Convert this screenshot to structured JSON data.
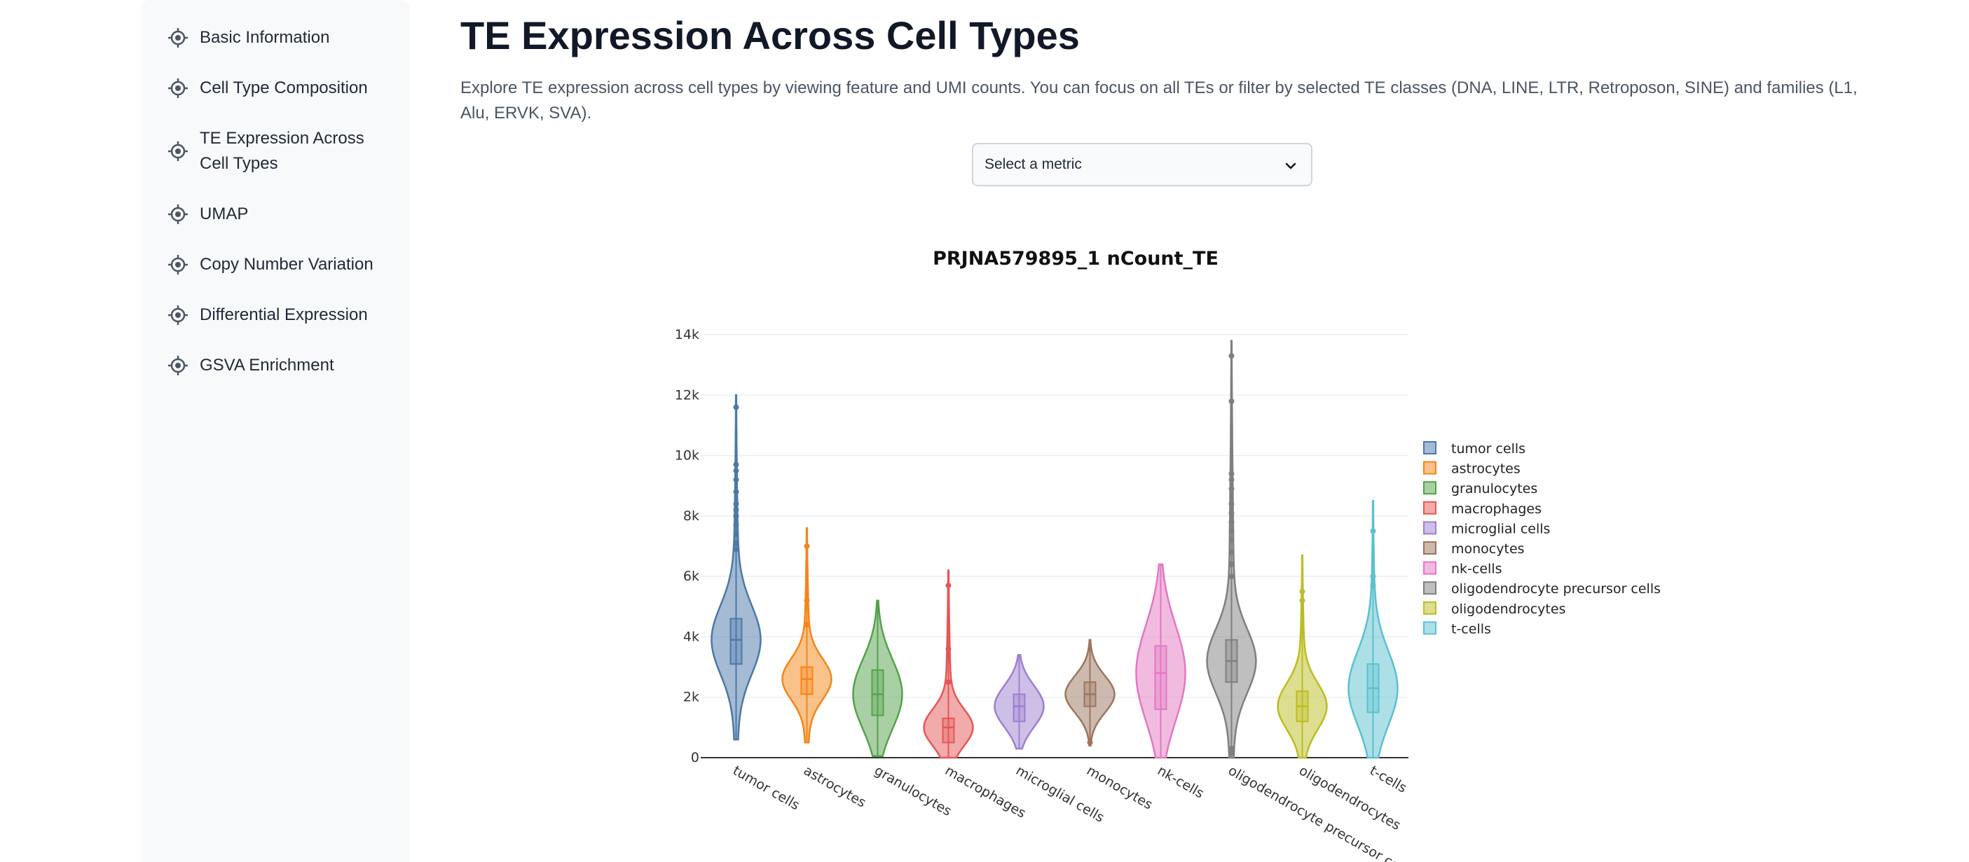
{
  "sidebar": {
    "items": [
      {
        "label": "Basic Information",
        "icon": "target-icon"
      },
      {
        "label": "Cell Type Composition",
        "icon": "target-icon"
      },
      {
        "label": "TE Expression Across Cell Types",
        "icon": "target-icon"
      },
      {
        "label": "UMAP",
        "icon": "target-icon"
      },
      {
        "label": "Copy Number Variation",
        "icon": "target-icon"
      },
      {
        "label": "Differential Expression",
        "icon": "target-icon"
      },
      {
        "label": "GSVA Enrichment",
        "icon": "target-icon"
      }
    ]
  },
  "main": {
    "title": "TE Expression Across Cell Types",
    "description": "Explore TE expression across cell types by viewing feature and UMI counts. You can focus on all TEs or filter by selected TE classes (DNA, LINE, LTR, Retroposon, SINE) and families (L1, Alu, ERVK, SVA).",
    "select": {
      "placeholder": "Select a metric",
      "icon": "chevron-down-icon"
    }
  },
  "chart_data": {
    "type": "violin",
    "title": "PRJNA579895_1 nCount_TE",
    "xlabel": "",
    "ylabel": "",
    "ylim": [
      0,
      14000
    ],
    "yticks": [
      0,
      2000,
      4000,
      6000,
      8000,
      10000,
      12000,
      14000
    ],
    "ytick_labels": [
      "0",
      "2k",
      "4k",
      "6k",
      "8k",
      "10k",
      "12k",
      "14k"
    ],
    "grid": true,
    "legend_position": "right",
    "categories": [
      "tumor cells",
      "astrocytes",
      "granulocytes",
      "macrophages",
      "microglial cells",
      "monocytes",
      "nk-cells",
      "oligodendrocyte precursor cells",
      "oligodendrocytes",
      "t-cells"
    ],
    "series": [
      {
        "name": "tumor cells",
        "color": "#4c78a8",
        "min": 600,
        "q1": 3100,
        "median": 3900,
        "q3": 4600,
        "max": 12000,
        "outliers": [
          11600,
          9700,
          9500,
          9200,
          8800,
          8400,
          8200,
          8000,
          7700,
          7400,
          7100,
          6900
        ]
      },
      {
        "name": "astrocytes",
        "color": "#f58518",
        "min": 500,
        "q1": 2100,
        "median": 2600,
        "q3": 3000,
        "max": 7600,
        "outliers": [
          7000,
          5200,
          4400
        ]
      },
      {
        "name": "granulocytes",
        "color": "#54a24b",
        "min": 50,
        "q1": 1400,
        "median": 2100,
        "q3": 2900,
        "max": 5200,
        "outliers": []
      },
      {
        "name": "macrophages",
        "color": "#e45756",
        "min": 0,
        "q1": 500,
        "median": 1000,
        "q3": 1300,
        "max": 6200,
        "outliers": [
          5700,
          3600,
          2500
        ]
      },
      {
        "name": "microglial cells",
        "color": "#9d7fd0",
        "min": 300,
        "q1": 1200,
        "median": 1700,
        "q3": 2100,
        "max": 3400,
        "outliers": []
      },
      {
        "name": "monocytes",
        "color": "#9c755f",
        "min": 400,
        "q1": 1700,
        "median": 2100,
        "q3": 2500,
        "max": 3900,
        "outliers": [
          500
        ]
      },
      {
        "name": "nk-cells",
        "color": "#e377c2",
        "min": 0,
        "q1": 1600,
        "median": 2800,
        "q3": 3700,
        "max": 6400,
        "outliers": []
      },
      {
        "name": "oligodendrocyte precursor cells",
        "color": "#7f7f7f",
        "min": 0,
        "q1": 2500,
        "median": 3200,
        "q3": 3900,
        "max": 13800,
        "outliers": [
          13300,
          11800,
          9400,
          9200,
          8900,
          8400,
          8100,
          7800,
          7500,
          7200,
          6800,
          6400,
          6000,
          300,
          150
        ]
      },
      {
        "name": "oligodendrocytes",
        "color": "#bcbd22",
        "min": 0,
        "q1": 1200,
        "median": 1700,
        "q3": 2200,
        "max": 6700,
        "outliers": [
          5500,
          5200
        ]
      },
      {
        "name": "t-cells",
        "color": "#5bc0d0",
        "min": 0,
        "q1": 1500,
        "median": 2300,
        "q3": 3100,
        "max": 8500,
        "outliers": [
          7500,
          6000,
          5700
        ]
      }
    ]
  }
}
